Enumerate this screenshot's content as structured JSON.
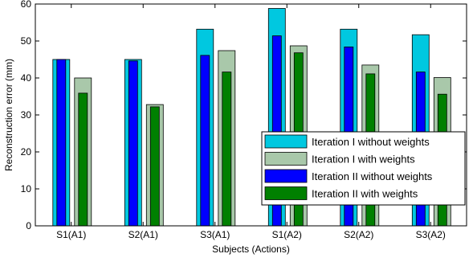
{
  "chart_data": {
    "type": "bar",
    "xlabel": "Subjects (Actions)",
    "ylabel": "Reconstruction error (mm)",
    "ylim": [
      0,
      60
    ],
    "yticks": [
      0,
      10,
      20,
      30,
      40,
      50,
      60
    ],
    "categories": [
      "S1(A1)",
      "S2(A1)",
      "S3(A1)",
      "S1(A2)",
      "S2(A2)",
      "S3(A2)"
    ],
    "grid": false,
    "legend_position": "bottom-right",
    "series": [
      {
        "name": "Iteration I without weights",
        "color": "#00c8e0",
        "values": [
          45,
          45,
          53.2,
          58.8,
          53.2,
          51.7
        ]
      },
      {
        "name": "Iteration I with weights",
        "color": "#a9c8aa",
        "values": [
          40,
          32.8,
          47.4,
          48.7,
          43.5,
          40.1
        ]
      },
      {
        "name": "Iteration II without weights",
        "color": "#0000ff",
        "values": [
          45,
          44.6,
          46.1,
          51.4,
          48.4,
          41.6
        ]
      },
      {
        "name": "Iteration II with weights",
        "color": "#008000",
        "values": [
          35.9,
          32.2,
          41.6,
          46.8,
          41.1,
          35.6
        ]
      }
    ]
  }
}
